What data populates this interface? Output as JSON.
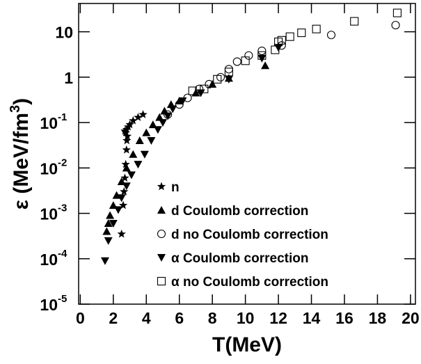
{
  "chart_data": {
    "type": "scatter",
    "xlabel": "T(MeV)",
    "ylabel": {
      "text": "ε (MeV/fm",
      "exponent": "3",
      "close": ")"
    },
    "log_y": true,
    "xlim": [
      -0.1,
      20.3
    ],
    "ylim": [
      1e-05,
      42
    ],
    "xticks": [
      0,
      2,
      4,
      6,
      8,
      10,
      12,
      14,
      16,
      18,
      20
    ],
    "yticks": [
      {
        "value": 1e-05,
        "label": "10",
        "exponent": "-5"
      },
      {
        "value": 0.0001,
        "label": "10",
        "exponent": "-4"
      },
      {
        "value": 0.001,
        "label": "10",
        "exponent": "-3"
      },
      {
        "value": 0.01,
        "label": "10",
        "exponent": "-2"
      },
      {
        "value": 0.1,
        "label": "10",
        "exponent": "-1"
      },
      1,
      10
    ],
    "legend": "center",
    "series": [
      {
        "name": "n",
        "marker": "star",
        "color": "#000000",
        "x": [
          2.5,
          2.6,
          2.65,
          2.7,
          2.75,
          2.8,
          2.82,
          2.75,
          2.8,
          2.9,
          3.0,
          3.2,
          3.5,
          3.8,
          2.85,
          2.7
        ],
        "y": [
          0.00035,
          0.0015,
          0.003,
          0.006,
          0.012,
          0.025,
          0.04,
          0.06,
          0.07,
          0.08,
          0.09,
          0.11,
          0.13,
          0.15,
          0.05,
          0.065
        ]
      },
      {
        "name": "d Coulomb correction",
        "marker": "triangle-up",
        "color": "#000000",
        "x": [
          1.6,
          1.7,
          1.8,
          2.0,
          2.2,
          2.5,
          2.8,
          3.2,
          3.6,
          4.0,
          4.4,
          4.8,
          5.1,
          5.5,
          6.0,
          7.0,
          8.0,
          9.0,
          11.2
        ],
        "y": [
          0.0004,
          0.0006,
          0.0009,
          0.0015,
          0.0025,
          0.005,
          0.01,
          0.02,
          0.04,
          0.06,
          0.09,
          0.13,
          0.18,
          0.25,
          0.3,
          0.45,
          0.7,
          0.95,
          1.8
        ]
      },
      {
        "name": "d no Coulomb correction",
        "marker": "circle-open",
        "color": "#000000",
        "x": [
          5.3,
          6.0,
          6.5,
          7.2,
          7.8,
          8.5,
          9.0,
          9.5,
          10.2,
          11.0,
          12.2,
          15.2,
          19.1
        ],
        "y": [
          0.15,
          0.25,
          0.35,
          0.55,
          0.7,
          1.0,
          1.5,
          2.2,
          3.0,
          3.8,
          5.0,
          8.5,
          14
        ]
      },
      {
        "name": "α Coulomb correction",
        "marker": "triangle-down",
        "color": "#000000",
        "x": [
          1.5,
          1.7,
          2.0,
          2.3,
          2.5,
          2.8,
          3.1,
          3.5,
          3.9,
          4.3,
          4.7,
          5.0,
          5.3,
          5.6,
          6.2,
          7.3,
          9.0,
          11.0,
          12.0
        ],
        "y": [
          9e-05,
          0.00025,
          0.0006,
          0.0012,
          0.0022,
          0.004,
          0.007,
          0.012,
          0.02,
          0.04,
          0.07,
          0.1,
          0.14,
          0.2,
          0.3,
          0.45,
          0.9,
          2.6,
          4.5
        ]
      },
      {
        "name": "α no Coulomb correction",
        "marker": "square-open",
        "color": "#000000",
        "x": [
          6.8,
          7.5,
          8.3,
          9.0,
          10.0,
          11.0,
          11.8,
          12.0,
          12.2,
          12.7,
          13.4,
          14.3,
          16.6,
          19.2
        ],
        "y": [
          0.5,
          0.55,
          0.9,
          1.3,
          2.3,
          3.0,
          4.0,
          6.0,
          6.5,
          7.8,
          9.5,
          11.5,
          17,
          26
        ]
      }
    ]
  }
}
